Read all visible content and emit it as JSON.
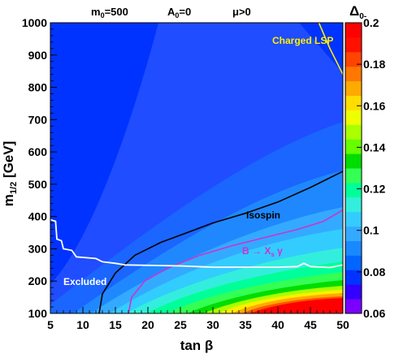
{
  "chart_data": {
    "type": "heatmap",
    "header": {
      "m0": {
        "main": "m",
        "sub": "0",
        "rest": "=500"
      },
      "A0": {
        "main": "A",
        "sub": "0",
        "rest": "=0"
      },
      "mu": "μ>0"
    },
    "xlabel": "tan β",
    "ylabel": {
      "main": "m",
      "sub": "1/2",
      "rest": " [GeV]"
    },
    "xlim": [
      5,
      50
    ],
    "ylim": [
      100,
      1000
    ],
    "xticks": [
      "5",
      "10",
      "15",
      "20",
      "25",
      "30",
      "35",
      "40",
      "45",
      "50"
    ],
    "yticks": [
      "100",
      "200",
      "300",
      "400",
      "500",
      "600",
      "700",
      "800",
      "900",
      "1000"
    ],
    "colorscale": {
      "title": {
        "main": "Δ",
        "sub": "0-"
      },
      "range": [
        0.06,
        0.2
      ],
      "ticks": [
        "0.06",
        "0.08",
        "0.1",
        "0.12",
        "0.14",
        "0.16",
        "0.18",
        "0.2"
      ],
      "colors": [
        "#7a00ff",
        "#3300ff",
        "#0033ff",
        "#0066ff",
        "#1a88ff",
        "#33aaff",
        "#33ccff",
        "#33eedd",
        "#00ff99",
        "#33ff55",
        "#00dd00",
        "#66ff00",
        "#aaff00",
        "#eeff00",
        "#ffdd00",
        "#ffaa00",
        "#ff7700",
        "#ff4400",
        "#ff1100",
        "#ff0000"
      ]
    },
    "annotations": {
      "charged_lsp": "Charged LSP",
      "isospin": "Isospin",
      "bsg": {
        "main": "B → X",
        "sub": "s",
        "rest": " γ"
      },
      "excluded": "Excluded"
    },
    "curves": {
      "isospin": [
        [
          12.5,
          100
        ],
        [
          13,
          160
        ],
        [
          15,
          225
        ],
        [
          18,
          280
        ],
        [
          22,
          320
        ],
        [
          26,
          350
        ],
        [
          30,
          380
        ],
        [
          35,
          410
        ],
        [
          40,
          445
        ],
        [
          45,
          490
        ],
        [
          50,
          540
        ]
      ],
      "bsg": [
        [
          17,
          100
        ],
        [
          17.5,
          150
        ],
        [
          19.5,
          200
        ],
        [
          23,
          240
        ],
        [
          28,
          280
        ],
        [
          33,
          310
        ],
        [
          38,
          335
        ],
        [
          43,
          360
        ],
        [
          47,
          385
        ],
        [
          50,
          420
        ]
      ],
      "excluded": [
        [
          5,
          390
        ],
        [
          5.8,
          385
        ],
        [
          6,
          330
        ],
        [
          6.7,
          325
        ],
        [
          7,
          300
        ],
        [
          8.3,
          295
        ],
        [
          9,
          275
        ],
        [
          12,
          270
        ],
        [
          13,
          260
        ],
        [
          15,
          255
        ],
        [
          16.5,
          250
        ],
        [
          25,
          247
        ],
        [
          30,
          243
        ],
        [
          35,
          243
        ],
        [
          40,
          243
        ],
        [
          43,
          245
        ],
        [
          44,
          255
        ],
        [
          45,
          245
        ],
        [
          48,
          242
        ],
        [
          50,
          250
        ]
      ],
      "charged_lsp": [
        [
          46.3,
          1000
        ],
        [
          48,
          920
        ],
        [
          50,
          840
        ]
      ]
    },
    "colors": {
      "isospin": "#000000",
      "bsg": "#cc33cc",
      "excluded": "#ffffff",
      "charged_lsp": "#ffee00"
    }
  }
}
